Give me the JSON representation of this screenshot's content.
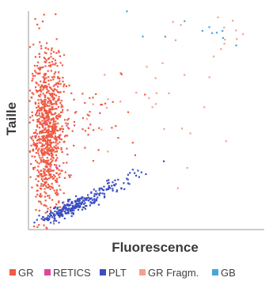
{
  "chart_data": {
    "type": "scatter",
    "xlabel": "Fluorescence",
    "ylabel": "Taille",
    "xlim": [
      0,
      100
    ],
    "ylim": [
      0,
      100
    ],
    "grid": false,
    "legend_position": "bottom",
    "series": [
      {
        "name": "GR",
        "color": "#ef5b44",
        "clusters": [
          {
            "cx": 8,
            "cy": 45,
            "sx": 3.5,
            "sy": 18,
            "n": 900,
            "slant": 0.0
          },
          {
            "cx": 22,
            "cy": 52,
            "sx": 13,
            "sy": 11,
            "n": 60,
            "slant": 0.0
          }
        ]
      },
      {
        "name": "RETICS",
        "color": "#e0469a",
        "clusters": [
          {
            "cx": 14,
            "cy": 40,
            "sx": 6,
            "sy": 12,
            "n": 12,
            "slant": 0.0
          }
        ]
      },
      {
        "name": "PLT",
        "color": "#3b4fc0",
        "clusters": [
          {
            "cx": 18,
            "cy": 10,
            "sx": 6.5,
            "sy": 1.6,
            "n": 240,
            "slant": 0.45
          },
          {
            "cx": 36,
            "cy": 20,
            "sx": 6,
            "sy": 1.8,
            "n": 55,
            "slant": 0.5
          }
        ]
      },
      {
        "name": "GR Fragm.",
        "color": "#f3a28a",
        "clusters": [
          {
            "cx": 55,
            "cy": 55,
            "sx": 22,
            "sy": 18,
            "n": 30,
            "slant": 0.0
          },
          {
            "cx": 85,
            "cy": 92,
            "sx": 8,
            "sy": 4,
            "n": 12,
            "slant": 0.0
          }
        ]
      },
      {
        "name": "GB",
        "color": "#4aa6d8",
        "clusters": [
          {
            "cx": 72,
            "cy": 90,
            "sx": 14,
            "sy": 6,
            "n": 14,
            "slant": 0.0
          }
        ]
      }
    ]
  }
}
